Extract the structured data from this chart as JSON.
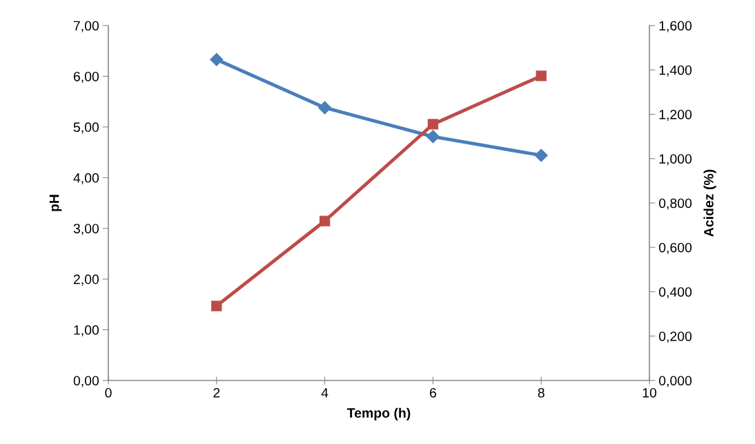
{
  "chart_data": {
    "type": "line",
    "xlabel": "Tempo (h)",
    "ylabel": "pH",
    "y2label": "Acidez (%)",
    "x": [
      2,
      4,
      6,
      8
    ],
    "series": [
      {
        "color": "#4a7ebb",
        "marker": "diamond",
        "values": [
          6.33,
          5.38,
          4.81,
          4.44
        ]
      },
      {
        "color": "#be4b48",
        "marker": "square",
        "axis": "y2",
        "values": [
          0.336,
          0.719,
          1.155,
          1.373
        ]
      }
    ],
    "xlim": [
      0,
      10
    ],
    "xticks": [
      0,
      2,
      4,
      6,
      8,
      10
    ],
    "ylim": [
      0,
      7
    ],
    "yticks": [
      {
        "value": 0,
        "label": "0,00"
      },
      {
        "value": 1,
        "label": "1,00"
      },
      {
        "value": 2,
        "label": "2,00"
      },
      {
        "value": 3,
        "label": "3,00"
      },
      {
        "value": 4,
        "label": "4,00"
      },
      {
        "value": 5,
        "label": "5,00"
      },
      {
        "value": 6,
        "label": "6,00"
      },
      {
        "value": 7,
        "label": "7,00"
      }
    ],
    "y2lim": [
      0,
      1.6
    ],
    "y2ticks": [
      {
        "value": 0,
        "label": "0,000"
      },
      {
        "value": 0.2,
        "label": "0,200"
      },
      {
        "value": 0.4,
        "label": "0,400"
      },
      {
        "value": 0.6,
        "label": "0,600"
      },
      {
        "value": 0.8,
        "label": "0,800"
      },
      {
        "value": 1.0,
        "label": "1,000"
      },
      {
        "value": 1.2,
        "label": "1,200"
      },
      {
        "value": 1.4,
        "label": "1,400"
      },
      {
        "value": 1.6,
        "label": "1,600"
      }
    ],
    "grid": false,
    "legend": false
  }
}
